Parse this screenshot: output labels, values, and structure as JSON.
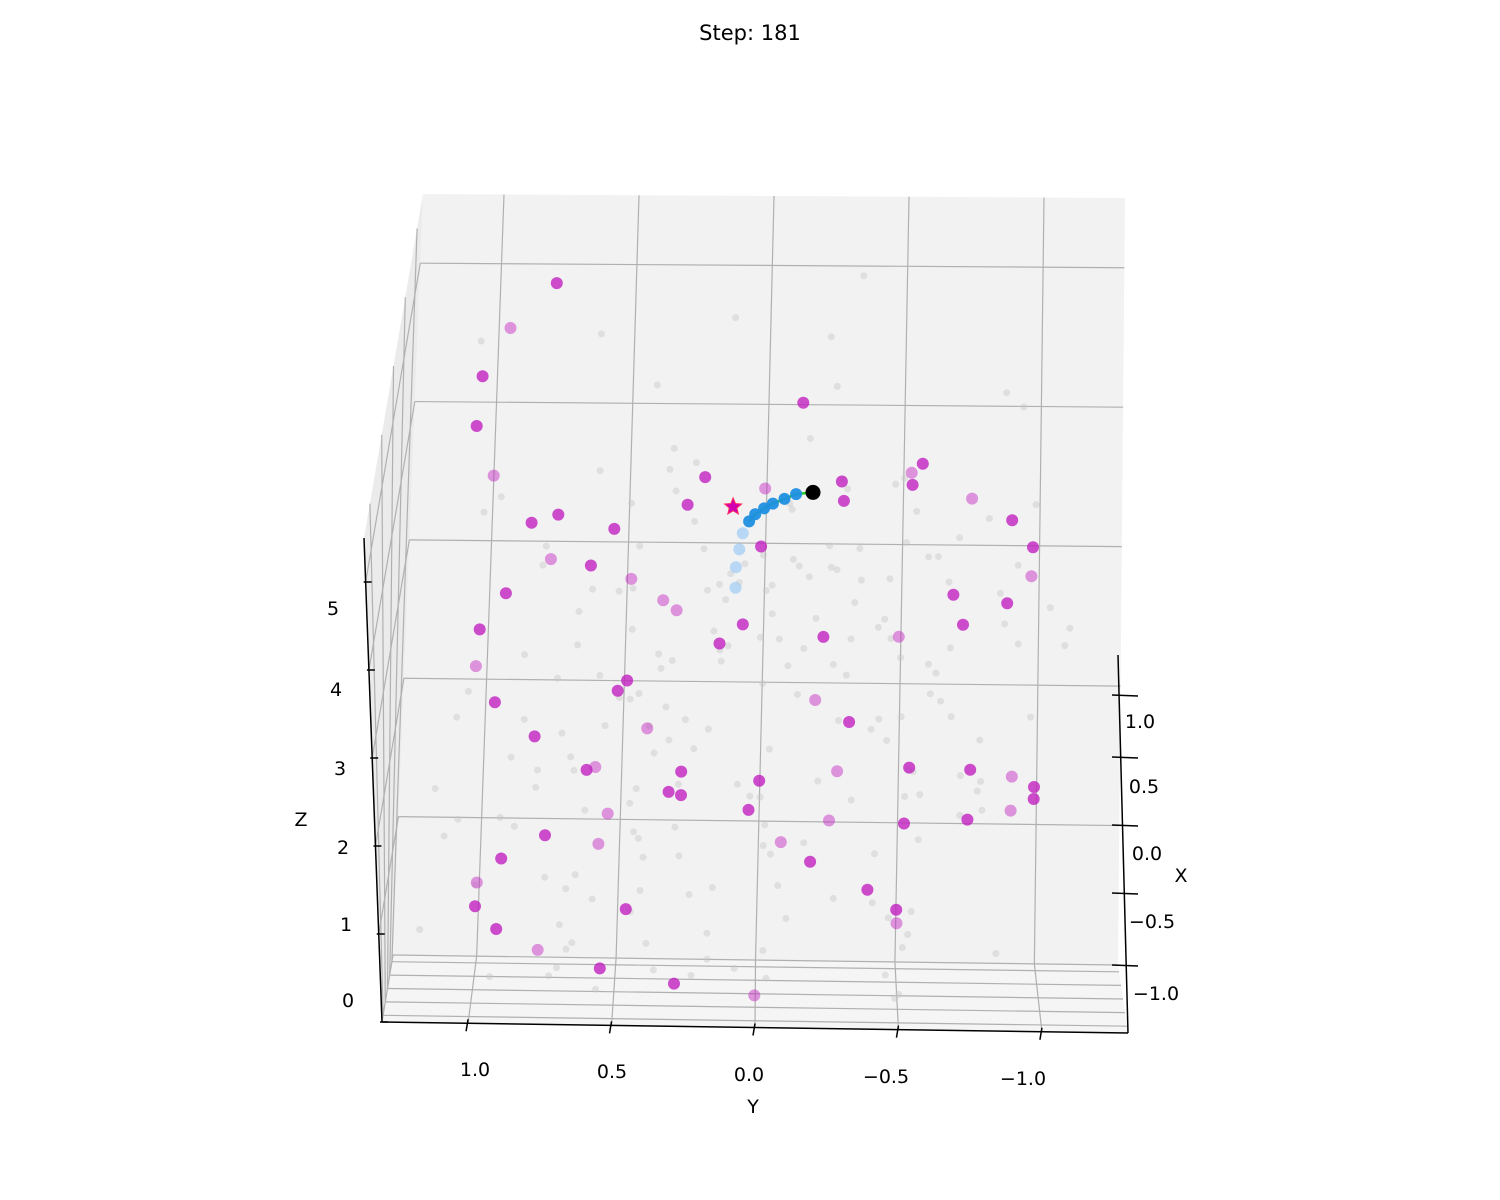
{
  "chart_data": {
    "type": "scatter",
    "projection": "3d",
    "title": "Step: 181",
    "xlabel": "X",
    "ylabel": "Y",
    "zlabel": "Z",
    "x_ticks": [
      "1.0",
      "0.5",
      "0.0",
      "−0.5",
      "−1.0"
    ],
    "y_ticks": [
      "1.0",
      "0.5",
      "0.0",
      "−0.5",
      "−1.0"
    ],
    "z_ticks": [
      "0",
      "1",
      "2",
      "3",
      "4",
      "5"
    ],
    "xlim": [
      -1.25,
      1.25
    ],
    "ylim": [
      -1.3,
      1.3
    ],
    "zlim": [
      0,
      5.5
    ],
    "grid": true,
    "colors": {
      "background_points": "#c8c8c8",
      "helix_points": "#c020c0",
      "trajectory": "#1f8fe0",
      "trajectory_faded": "#a8d0f5",
      "path_line": "#22cc22",
      "current": "#000000",
      "target_star": "#d000b0"
    },
    "series": [
      {
        "role": "helix_points",
        "points": [
          [
            1.0,
            0.0,
            0.3
          ],
          [
            0.96,
            0.28,
            0.4
          ],
          [
            0.84,
            0.54,
            0.5
          ],
          [
            0.65,
            0.76,
            0.6
          ],
          [
            0.41,
            0.91,
            0.7
          ],
          [
            0.14,
            0.99,
            0.8
          ],
          [
            -0.14,
            0.99,
            0.9
          ],
          [
            -0.41,
            0.91,
            1.0
          ],
          [
            -0.65,
            0.76,
            1.1
          ],
          [
            -0.84,
            0.54,
            1.2
          ],
          [
            -0.96,
            0.28,
            1.3
          ],
          [
            -1.0,
            0.0,
            1.4
          ],
          [
            -0.96,
            -0.28,
            1.5
          ],
          [
            -0.84,
            -0.54,
            1.6
          ],
          [
            -0.65,
            -0.76,
            1.7
          ],
          [
            -0.41,
            -0.91,
            1.8
          ],
          [
            -0.14,
            -0.99,
            1.9
          ],
          [
            0.14,
            -0.99,
            2.0
          ],
          [
            0.41,
            -0.91,
            2.1
          ],
          [
            0.65,
            -0.76,
            2.2
          ],
          [
            0.84,
            -0.54,
            2.3
          ],
          [
            0.96,
            -0.28,
            2.4
          ],
          [
            1.0,
            0.0,
            2.5
          ],
          [
            0.96,
            0.28,
            2.6
          ],
          [
            0.84,
            0.54,
            2.7
          ],
          [
            0.65,
            0.76,
            2.8
          ],
          [
            0.41,
            0.91,
            2.9
          ],
          [
            0.14,
            0.99,
            3.0
          ],
          [
            -0.14,
            0.99,
            3.1
          ],
          [
            -0.41,
            0.91,
            3.2
          ],
          [
            -0.65,
            0.76,
            3.3
          ],
          [
            -0.84,
            0.54,
            3.4
          ],
          [
            -0.96,
            0.28,
            3.5
          ],
          [
            -1.0,
            0.0,
            3.6
          ],
          [
            -0.96,
            -0.28,
            3.7
          ],
          [
            -0.84,
            -0.54,
            3.8
          ],
          [
            -0.65,
            -0.76,
            3.9
          ],
          [
            -0.41,
            -0.91,
            4.0
          ],
          [
            -0.14,
            -0.99,
            4.1
          ],
          [
            0.14,
            -0.99,
            4.2
          ],
          [
            0.41,
            -0.91,
            4.3
          ],
          [
            0.65,
            -0.76,
            4.4
          ],
          [
            0.84,
            -0.54,
            4.5
          ],
          [
            0.96,
            -0.28,
            4.6
          ],
          [
            1.0,
            0.0,
            4.7
          ],
          [
            0.96,
            0.28,
            4.8
          ],
          [
            0.84,
            0.54,
            4.9
          ],
          [
            0.65,
            0.76,
            5.0
          ],
          [
            0.41,
            0.91,
            5.1
          ],
          [
            0.14,
            0.99,
            5.2
          ],
          [
            -0.14,
            0.99,
            5.3
          ],
          [
            -0.41,
            0.91,
            5.4
          ],
          [
            -0.65,
            0.76,
            5.5
          ],
          [
            0.55,
            0.45,
            1.0
          ],
          [
            0.3,
            0.55,
            1.5
          ],
          [
            0.0,
            0.6,
            2.0
          ],
          [
            -0.3,
            0.5,
            2.5
          ],
          [
            -0.55,
            0.3,
            3.0
          ],
          [
            -0.6,
            0.0,
            3.5
          ],
          [
            -0.5,
            -0.3,
            4.0
          ],
          [
            -0.3,
            -0.55,
            4.5
          ],
          [
            0.0,
            -0.6,
            5.0
          ],
          [
            0.4,
            -0.4,
            1.2
          ],
          [
            0.6,
            -0.1,
            1.8
          ],
          [
            0.5,
            0.25,
            2.4
          ],
          [
            0.2,
            0.45,
            3.0
          ],
          [
            -0.15,
            0.45,
            3.6
          ],
          [
            -0.45,
            0.2,
            4.2
          ],
          [
            -0.5,
            -0.15,
            4.8
          ],
          [
            -0.2,
            -0.5,
            0.6
          ],
          [
            0.2,
            -0.5,
            0.9
          ],
          [
            0.45,
            -0.2,
            1.5
          ],
          [
            -0.6,
            0.4,
            2.0
          ],
          [
            0.7,
            0.1,
            4.0
          ],
          [
            0.65,
            -0.35,
            3.2
          ],
          [
            -0.7,
            -0.2,
            2.2
          ],
          [
            0.1,
            0.7,
            4.4
          ],
          [
            -0.35,
            -0.7,
            3.4
          ]
        ]
      },
      {
        "role": "background_points",
        "note": "faint scattered points",
        "count": 200
      },
      {
        "role": "trajectory",
        "points": [
          [
            0.28,
            0.06,
            4.05
          ],
          [
            0.24,
            0.06,
            4.2
          ],
          [
            0.18,
            0.05,
            4.3
          ],
          [
            0.12,
            0.04,
            4.38
          ],
          [
            0.06,
            0.02,
            4.42
          ],
          [
            0.02,
            0.0,
            4.44
          ],
          [
            -0.02,
            -0.03,
            4.45
          ],
          [
            -0.06,
            -0.06,
            4.45
          ],
          [
            -0.1,
            -0.1,
            4.45
          ],
          [
            -0.14,
            -0.14,
            4.45
          ]
        ]
      },
      {
        "role": "current",
        "points": [
          [
            -0.16,
            -0.2,
            4.45
          ]
        ]
      },
      {
        "role": "target_star",
        "points": [
          [
            0.0,
            0.08,
            4.47
          ]
        ]
      }
    ]
  }
}
